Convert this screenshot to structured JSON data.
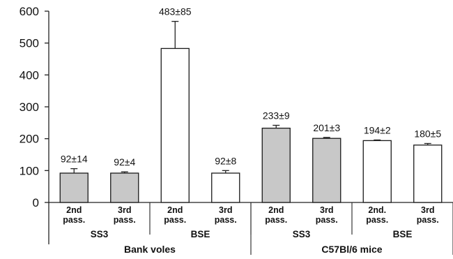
{
  "chart_data": {
    "type": "bar",
    "title": "",
    "xlabel": "",
    "ylabel": "",
    "ylim": [
      0,
      600
    ],
    "yticks": [
      0,
      100,
      200,
      300,
      400,
      500,
      600
    ],
    "grid": false,
    "legend": "none",
    "colors": {
      "SS3": "#c8c8c8",
      "BSE": "#ffffff",
      "outline": "#1a1a1a"
    },
    "bars": [
      {
        "host": "Bank voles",
        "inoculum": "SS3",
        "passage": [
          "2nd",
          "pass."
        ],
        "value": 92,
        "error": 14,
        "label": "92±14"
      },
      {
        "host": "Bank voles",
        "inoculum": "SS3",
        "passage": [
          "3rd",
          "pass."
        ],
        "value": 92,
        "error": 4,
        "label": "92±4"
      },
      {
        "host": "Bank voles",
        "inoculum": "BSE",
        "passage": [
          "2nd",
          "pass."
        ],
        "value": 483,
        "error": 85,
        "label": "483±85"
      },
      {
        "host": "Bank voles",
        "inoculum": "BSE",
        "passage": [
          "3rd",
          "pass."
        ],
        "value": 92,
        "error": 8,
        "label": "92±8"
      },
      {
        "host": "C57Bl/6 mice",
        "inoculum": "SS3",
        "passage": [
          "2nd",
          "pass."
        ],
        "value": 233,
        "error": 9,
        "label": "233±9"
      },
      {
        "host": "C57Bl/6 mice",
        "inoculum": "SS3",
        "passage": [
          "3rd",
          "pass."
        ],
        "value": 201,
        "error": 3,
        "label": "201±3"
      },
      {
        "host": "C57Bl/6 mice",
        "inoculum": "BSE",
        "passage": [
          "2nd.",
          "pass."
        ],
        "value": 194,
        "error": 2,
        "label": "194±2"
      },
      {
        "host": "C57Bl/6 mice",
        "inoculum": "BSE",
        "passage": [
          "3rd",
          "pass."
        ],
        "value": 180,
        "error": 5,
        "label": "180±5"
      }
    ],
    "inoculum_groups": [
      "SS3",
      "BSE",
      "SS3",
      "BSE"
    ],
    "host_groups": [
      "Bank voles",
      "C57Bl/6 mice"
    ]
  }
}
